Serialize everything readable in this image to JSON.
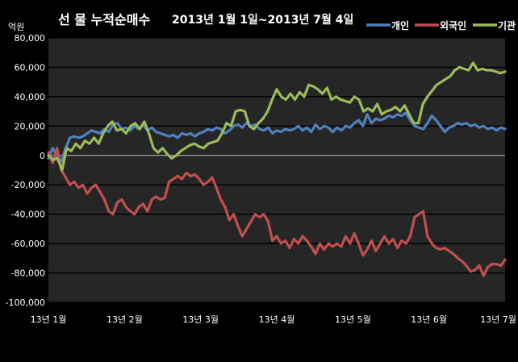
{
  "chart_data": {
    "type": "line",
    "title": "선 물 누적순매수",
    "subtitle": "2013년 1월 1일~2013년 7월 4일",
    "ylabel": "억원",
    "xlabel": "",
    "ylim": [
      -100000,
      80000
    ],
    "yticks": [
      "80,000",
      "60,000",
      "40,000",
      "20,000",
      "0",
      "-20,000",
      "-40,000",
      "-60,000",
      "-80,000",
      "-100,000"
    ],
    "xticks": [
      "13년 1월",
      "13년 2월",
      "13년 3월",
      "13년 4월",
      "13년 5월",
      "13년 6월",
      "13년 7월"
    ],
    "grid": true,
    "legend": "top-right",
    "series": [
      {
        "name": "개인",
        "color": "#4f81bd",
        "values": [
          -2000,
          5000,
          0,
          -4000,
          5000,
          12000,
          13000,
          12000,
          13000,
          15000,
          17000,
          16000,
          15000,
          18000,
          16000,
          21000,
          22000,
          18000,
          19000,
          17000,
          20000,
          18000,
          21000,
          17000,
          19000,
          16000,
          15000,
          14000,
          13000,
          14000,
          12000,
          15000,
          14000,
          15000,
          13000,
          15000,
          16000,
          18000,
          17000,
          19000,
          18000,
          15000,
          17000,
          20000,
          21000,
          19000,
          22000,
          20000,
          21000,
          18000,
          17000,
          19000,
          15000,
          17000,
          16000,
          18000,
          17000,
          18000,
          20000,
          17000,
          19000,
          16000,
          21000,
          18000,
          20000,
          19000,
          16000,
          19000,
          17000,
          20000,
          19000,
          22000,
          24000,
          20000,
          28000,
          22000,
          25000,
          24000,
          25000,
          27000,
          26000,
          28000,
          27000,
          29000,
          24000,
          20000,
          19000,
          18000,
          22000,
          27000,
          24000,
          20000,
          16000,
          19000,
          20000,
          22000,
          21000,
          22000,
          20000,
          21000,
          19000,
          20000,
          18000,
          19000,
          17000,
          19000,
          18000
        ]
      },
      {
        "name": "외국인",
        "color": "#c0504d",
        "values": [
          2000,
          -5000,
          5000,
          -10000,
          -15000,
          -20000,
          -18000,
          -22000,
          -20000,
          -26000,
          -22000,
          -20000,
          -25000,
          -30000,
          -38000,
          -40000,
          -32000,
          -30000,
          -35000,
          -38000,
          -40000,
          -35000,
          -33000,
          -38000,
          -30000,
          -28000,
          -30000,
          -29000,
          -18000,
          -16000,
          -14000,
          -16000,
          -12000,
          -14000,
          -13000,
          -16000,
          -20000,
          -18000,
          -15000,
          -22000,
          -30000,
          -35000,
          -44000,
          -40000,
          -48000,
          -55000,
          -50000,
          -45000,
          -40000,
          -42000,
          -40000,
          -45000,
          -58000,
          -55000,
          -60000,
          -58000,
          -63000,
          -57000,
          -60000,
          -55000,
          -58000,
          -62000,
          -67000,
          -60000,
          -64000,
          -60000,
          -62000,
          -60000,
          -62000,
          -55000,
          -60000,
          -53000,
          -60000,
          -68000,
          -64000,
          -58000,
          -65000,
          -60000,
          -55000,
          -60000,
          -57000,
          -63000,
          -58000,
          -60000,
          -55000,
          -42000,
          -40000,
          -38000,
          -55000,
          -60000,
          -63000,
          -64000,
          -63000,
          -65000,
          -67000,
          -70000,
          -72000,
          -75000,
          -79000,
          -78000,
          -75000,
          -82000,
          -76000,
          -74000,
          -74000,
          -75000,
          -71000
        ]
      },
      {
        "name": "기관",
        "color": "#9bbb59",
        "values": [
          0,
          -3000,
          -2000,
          -10000,
          5000,
          3000,
          8000,
          5000,
          10000,
          8000,
          12000,
          8000,
          15000,
          20000,
          23000,
          17000,
          18000,
          15000,
          20000,
          22000,
          18000,
          23000,
          15000,
          5000,
          2000,
          5000,
          1000,
          -2000,
          0,
          3000,
          5000,
          7000,
          8000,
          6000,
          5000,
          8000,
          9000,
          10000,
          15000,
          22000,
          20000,
          30000,
          31000,
          30000,
          20000,
          18000,
          22000,
          25000,
          30000,
          38000,
          45000,
          40000,
          38000,
          42000,
          38000,
          43000,
          40000,
          48000,
          47000,
          45000,
          42000,
          46000,
          38000,
          40000,
          38000,
          37000,
          36000,
          40000,
          38000,
          30000,
          32000,
          30000,
          35000,
          28000,
          30000,
          31000,
          33000,
          30000,
          34000,
          28000,
          22000,
          22000,
          35000,
          40000,
          44000,
          48000,
          50000,
          52000,
          54000,
          58000,
          60000,
          59000,
          58000,
          63000,
          58000,
          59000,
          58000,
          58000,
          57000,
          56000,
          57000
        ]
      }
    ]
  }
}
